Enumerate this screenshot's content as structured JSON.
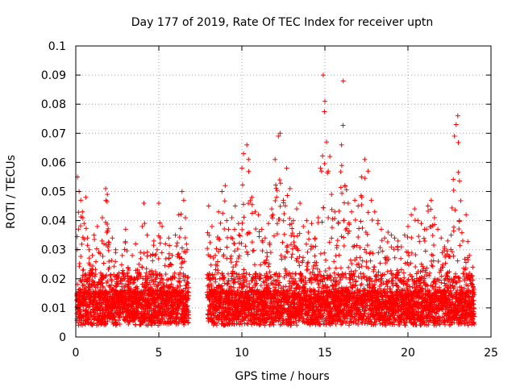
{
  "chart_data": {
    "type": "scatter",
    "title": "Day 177 of 2019, Rate Of TEC Index for receiver uptn",
    "xlabel": "GPS time / hours",
    "ylabel": "ROTI / TECUs",
    "xlim": [
      0,
      25
    ],
    "ylim": [
      0,
      0.1
    ],
    "xticks": [
      "0",
      "5",
      "10",
      "15",
      "20",
      "25"
    ],
    "yticks": [
      "0",
      "0.01",
      "0.02",
      "0.03",
      "0.04",
      "0.05",
      "0.06",
      "0.07",
      "0.08",
      "0.09",
      "0.1"
    ],
    "grid": true,
    "marker": "+",
    "colors": {
      "points": "#ff0000",
      "grid": "#a0a0a0"
    },
    "data_gap_hours": [
      6.8,
      7.9
    ],
    "series": [
      {
        "values": [
          [
            0.1,
            0.055
          ],
          [
            0.2,
            0.05
          ],
          [
            0.3,
            0.047
          ],
          [
            0.4,
            0.043
          ],
          [
            0.5,
            0.039
          ],
          [
            0.6,
            0.048
          ],
          [
            0.7,
            0.034
          ],
          [
            0.8,
            0.03
          ],
          [
            1.0,
            0.028
          ],
          [
            1.1,
            0.035
          ],
          [
            1.3,
            0.038
          ],
          [
            1.5,
            0.022
          ],
          [
            1.6,
            0.041
          ],
          [
            1.7,
            0.032
          ],
          [
            1.8,
            0.051
          ],
          [
            1.9,
            0.049
          ],
          [
            2.0,
            0.026
          ],
          [
            2.2,
            0.034
          ],
          [
            2.4,
            0.03
          ],
          [
            2.6,
            0.022
          ],
          [
            2.8,
            0.028
          ],
          [
            3.0,
            0.037
          ],
          [
            3.2,
            0.023
          ],
          [
            3.4,
            0.028
          ],
          [
            3.6,
            0.032
          ],
          [
            3.8,
            0.025
          ],
          [
            4.0,
            0.038
          ],
          [
            4.1,
            0.046
          ],
          [
            4.3,
            0.035
          ],
          [
            4.5,
            0.028
          ],
          [
            4.7,
            0.033
          ],
          [
            4.9,
            0.03
          ],
          [
            5.0,
            0.046
          ],
          [
            5.2,
            0.038
          ],
          [
            5.4,
            0.032
          ],
          [
            5.6,
            0.034
          ],
          [
            5.8,
            0.028
          ],
          [
            6.0,
            0.035
          ],
          [
            6.2,
            0.042
          ],
          [
            6.4,
            0.05
          ],
          [
            6.5,
            0.047
          ],
          [
            6.6,
            0.041
          ],
          [
            6.7,
            0.03
          ],
          [
            8.0,
            0.045
          ],
          [
            8.2,
            0.038
          ],
          [
            8.4,
            0.028
          ],
          [
            8.6,
            0.043
          ],
          [
            8.8,
            0.05
          ],
          [
            9.0,
            0.052
          ],
          [
            9.2,
            0.037
          ],
          [
            9.4,
            0.041
          ],
          [
            9.6,
            0.045
          ],
          [
            9.8,
            0.039
          ],
          [
            10.0,
            0.058
          ],
          [
            10.1,
            0.063
          ],
          [
            10.3,
            0.066
          ],
          [
            10.4,
            0.061
          ],
          [
            10.6,
            0.048
          ],
          [
            10.8,
            0.043
          ],
          [
            11.0,
            0.042
          ],
          [
            11.2,
            0.037
          ],
          [
            11.4,
            0.034
          ],
          [
            11.6,
            0.039
          ],
          [
            11.8,
            0.044
          ],
          [
            12.0,
            0.061
          ],
          [
            12.2,
            0.069
          ],
          [
            12.3,
            0.07
          ],
          [
            12.5,
            0.047
          ],
          [
            12.7,
            0.058
          ],
          [
            12.9,
            0.051
          ],
          [
            13.1,
            0.04
          ],
          [
            13.3,
            0.044
          ],
          [
            13.5,
            0.046
          ],
          [
            13.7,
            0.038
          ],
          [
            13.9,
            0.04
          ],
          [
            14.0,
            0.036
          ],
          [
            14.2,
            0.039
          ],
          [
            14.4,
            0.034
          ],
          [
            14.6,
            0.041
          ],
          [
            14.8,
            0.057
          ],
          [
            14.9,
            0.09
          ],
          [
            15.0,
            0.081
          ],
          [
            15.1,
            0.067
          ],
          [
            15.2,
            0.057
          ],
          [
            15.3,
            0.062
          ],
          [
            15.4,
            0.049
          ],
          [
            15.6,
            0.043
          ],
          [
            15.8,
            0.039
          ],
          [
            16.0,
            0.066
          ],
          [
            16.1,
            0.088
          ],
          [
            16.2,
            0.052
          ],
          [
            16.4,
            0.046
          ],
          [
            16.6,
            0.043
          ],
          [
            16.8,
            0.047
          ],
          [
            17.0,
            0.045
          ],
          [
            17.2,
            0.055
          ],
          [
            17.4,
            0.061
          ],
          [
            17.6,
            0.057
          ],
          [
            17.8,
            0.047
          ],
          [
            18.0,
            0.043
          ],
          [
            18.2,
            0.04
          ],
          [
            18.4,
            0.037
          ],
          [
            18.6,
            0.034
          ],
          [
            18.8,
            0.036
          ],
          [
            19.0,
            0.035
          ],
          [
            19.2,
            0.034
          ],
          [
            19.4,
            0.033
          ],
          [
            19.6,
            0.031
          ],
          [
            19.8,
            0.035
          ],
          [
            20.0,
            0.038
          ],
          [
            20.2,
            0.042
          ],
          [
            20.4,
            0.044
          ],
          [
            20.6,
            0.04
          ],
          [
            20.8,
            0.039
          ],
          [
            21.0,
            0.037
          ],
          [
            21.2,
            0.045
          ],
          [
            21.4,
            0.047
          ],
          [
            21.6,
            0.041
          ],
          [
            21.8,
            0.037
          ],
          [
            22.0,
            0.034
          ],
          [
            22.2,
            0.031
          ],
          [
            22.4,
            0.033
          ],
          [
            22.6,
            0.035
          ],
          [
            22.8,
            0.069
          ],
          [
            22.9,
            0.073
          ],
          [
            23.0,
            0.076
          ],
          [
            23.1,
            0.04
          ],
          [
            23.3,
            0.033
          ],
          [
            23.5,
            0.042
          ],
          [
            23.7,
            0.028
          ],
          [
            23.9,
            0.024
          ]
        ]
      }
    ]
  }
}
